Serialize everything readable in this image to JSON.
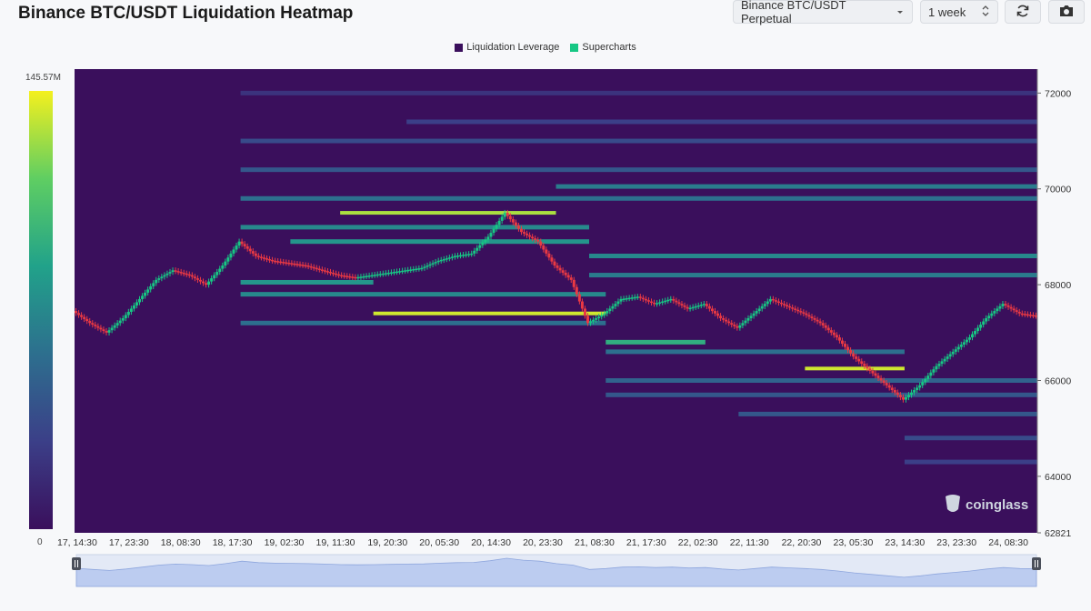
{
  "header": {
    "title": "Binance BTC/USDT Liquidation Heatmap",
    "market_select": "Binance BTC/USDT Perpetual",
    "range_select": "1 week",
    "icons": {
      "dropdown": "chevron-down-icon",
      "stepper": "up-down-stepper-icon",
      "refresh": "refresh-icon",
      "camera": "camera-icon"
    }
  },
  "legend": {
    "items": [
      {
        "label": "Liquidation Leverage",
        "color": "#3a0f5c"
      },
      {
        "label": "Supercharts",
        "color": "#16c784"
      }
    ]
  },
  "colorbar": {
    "max_label": "145.57M",
    "min_label": "0"
  },
  "watermark": "coinglass",
  "chart_data": {
    "type": "heatmap",
    "title": "Binance BTC/USDT Liquidation Heatmap",
    "ylim": [
      62821,
      72500
    ],
    "y_ticks": [
      {
        "value": 72000,
        "label": "72000"
      },
      {
        "value": 70000,
        "label": "70000"
      },
      {
        "value": 68000,
        "label": "68000"
      },
      {
        "value": 66000,
        "label": "66000"
      },
      {
        "value": 64000,
        "label": "64000"
      },
      {
        "value": 62821,
        "label": "62821"
      }
    ],
    "x_ticks": [
      "17, 14:30",
      "17, 23:30",
      "18, 08:30",
      "18, 17:30",
      "19, 02:30",
      "19, 11:30",
      "19, 20:30",
      "20, 05:30",
      "20, 14:30",
      "20, 23:30",
      "21, 08:30",
      "21, 17:30",
      "22, 02:30",
      "22, 11:30",
      "22, 20:30",
      "23, 05:30",
      "23, 14:30",
      "23, 23:30",
      "24, 08:30"
    ],
    "colorscale": {
      "min": 0,
      "max": 145570000,
      "low_color": "#3a0f5c",
      "high_color": "#f4f01e"
    },
    "price_path": [
      [
        0,
        67450
      ],
      [
        0.5,
        67200
      ],
      [
        1,
        67000
      ],
      [
        1.5,
        67300
      ],
      [
        2,
        67700
      ],
      [
        2.5,
        68100
      ],
      [
        3,
        68300
      ],
      [
        3.5,
        68200
      ],
      [
        4,
        68000
      ],
      [
        4.5,
        68400
      ],
      [
        5,
        68900
      ],
      [
        5.5,
        68600
      ],
      [
        6,
        68500
      ],
      [
        6.5,
        68450
      ],
      [
        7,
        68400
      ],
      [
        7.5,
        68300
      ],
      [
        8,
        68200
      ],
      [
        8.5,
        68150
      ],
      [
        9,
        68200
      ],
      [
        9.5,
        68250
      ],
      [
        10,
        68300
      ],
      [
        10.5,
        68350
      ],
      [
        11,
        68500
      ],
      [
        11.5,
        68600
      ],
      [
        12,
        68650
      ],
      [
        12.5,
        69000
      ],
      [
        13,
        69500
      ],
      [
        13.5,
        69100
      ],
      [
        14,
        68900
      ],
      [
        14.5,
        68400
      ],
      [
        15,
        68100
      ],
      [
        15.5,
        67200
      ],
      [
        16,
        67400
      ],
      [
        16.5,
        67700
      ],
      [
        17,
        67750
      ],
      [
        17.5,
        67600
      ],
      [
        18,
        67700
      ],
      [
        18.5,
        67500
      ],
      [
        19,
        67600
      ],
      [
        19.5,
        67300
      ],
      [
        20,
        67100
      ],
      [
        20.5,
        67400
      ],
      [
        21,
        67700
      ],
      [
        21.5,
        67550
      ],
      [
        22,
        67400
      ],
      [
        22.5,
        67200
      ],
      [
        23,
        66900
      ],
      [
        23.5,
        66500
      ],
      [
        24,
        66200
      ],
      [
        24.5,
        65900
      ],
      [
        25,
        65600
      ],
      [
        25.5,
        65900
      ],
      [
        26,
        66300
      ],
      [
        26.5,
        66600
      ],
      [
        27,
        66900
      ],
      [
        27.5,
        67300
      ],
      [
        28,
        67600
      ],
      [
        28.5,
        67400
      ],
      [
        29,
        67350
      ]
    ],
    "liquidation_bands": [
      {
        "price": 72000,
        "from": 5,
        "to": 29,
        "intensity": 0.15
      },
      {
        "price": 71400,
        "from": 10,
        "to": 29,
        "intensity": 0.2
      },
      {
        "price": 71000,
        "from": 5,
        "to": 29,
        "intensity": 0.25
      },
      {
        "price": 70400,
        "from": 5,
        "to": 29,
        "intensity": 0.3
      },
      {
        "price": 70050,
        "from": 14.5,
        "to": 29,
        "intensity": 0.45
      },
      {
        "price": 69800,
        "from": 5,
        "to": 29,
        "intensity": 0.4
      },
      {
        "price": 69500,
        "from": 8,
        "to": 14.5,
        "intensity": 0.9
      },
      {
        "price": 69200,
        "from": 5,
        "to": 15.5,
        "intensity": 0.5
      },
      {
        "price": 68900,
        "from": 6.5,
        "to": 15.5,
        "intensity": 0.55
      },
      {
        "price": 68600,
        "from": 15.5,
        "to": 29,
        "intensity": 0.5
      },
      {
        "price": 68200,
        "from": 15.5,
        "to": 29,
        "intensity": 0.45
      },
      {
        "price": 68050,
        "from": 5,
        "to": 9,
        "intensity": 0.55
      },
      {
        "price": 67800,
        "from": 5,
        "to": 16,
        "intensity": 0.5
      },
      {
        "price": 67400,
        "from": 9,
        "to": 16,
        "intensity": 0.95
      },
      {
        "price": 67200,
        "from": 5,
        "to": 16,
        "intensity": 0.4
      },
      {
        "price": 66800,
        "from": 16,
        "to": 19,
        "intensity": 0.65
      },
      {
        "price": 66600,
        "from": 16,
        "to": 25,
        "intensity": 0.4
      },
      {
        "price": 66250,
        "from": 22,
        "to": 25,
        "intensity": 0.95
      },
      {
        "price": 66000,
        "from": 16,
        "to": 29,
        "intensity": 0.35
      },
      {
        "price": 65700,
        "from": 16,
        "to": 29,
        "intensity": 0.3
      },
      {
        "price": 65300,
        "from": 20,
        "to": 29,
        "intensity": 0.3
      },
      {
        "price": 64800,
        "from": 25,
        "to": 29,
        "intensity": 0.25
      },
      {
        "price": 64300,
        "from": 25,
        "to": 29,
        "intensity": 0.2
      }
    ]
  }
}
